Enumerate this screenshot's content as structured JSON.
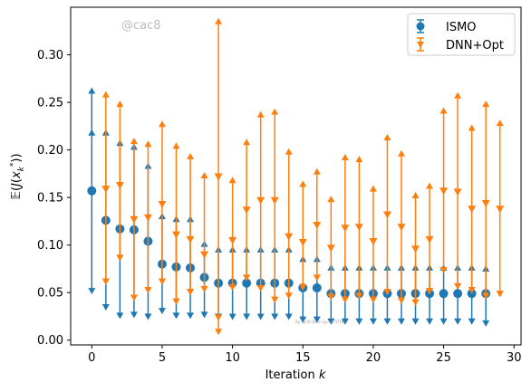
{
  "chart_data": {
    "type": "scatter",
    "title": "",
    "xlabel": "Iteration k",
    "ylabel": "𝔼(J(x_k^*))",
    "xlim": [
      -1.5,
      30.5
    ],
    "ylim": [
      -0.005,
      0.35
    ],
    "xticks": [
      0,
      5,
      10,
      15,
      20,
      25,
      30
    ],
    "yticks": [
      0.0,
      0.05,
      0.1,
      0.15,
      0.2,
      0.25,
      0.3
    ],
    "grid": false,
    "legend_position": "top-right",
    "watermark": "@cac8",
    "footnote": "By Kyrill Olsen Lyu @ DTHU ...",
    "series": [
      {
        "name": "ISMO",
        "color": "#1f77b4",
        "marker": "circle",
        "x": [
          0,
          1,
          2,
          3,
          4,
          5,
          6,
          7,
          8,
          9,
          10,
          11,
          12,
          13,
          14,
          15,
          16,
          17,
          18,
          19,
          20,
          21,
          22,
          23,
          24,
          25,
          26,
          27,
          28
        ],
        "y": [
          0.157,
          0.126,
          0.117,
          0.116,
          0.104,
          0.08,
          0.077,
          0.076,
          0.066,
          0.06,
          0.06,
          0.06,
          0.06,
          0.06,
          0.06,
          0.055,
          0.055,
          0.049,
          0.049,
          0.049,
          0.049,
          0.049,
          0.049,
          0.049,
          0.049,
          0.049,
          0.049,
          0.049,
          0.049
        ],
        "mid": [
          0.218,
          0.218,
          0.207,
          0.203,
          0.183,
          0.13,
          0.127,
          0.127,
          0.101,
          0.095,
          0.095,
          0.095,
          0.095,
          0.095,
          0.095,
          0.085,
          0.085,
          0.076,
          0.076,
          0.076,
          0.076,
          0.076,
          0.076,
          0.076,
          0.076,
          0.076,
          0.076,
          0.076,
          0.075
        ],
        "upper": [
          0.262,
          0.218,
          0.207,
          0.203,
          0.183,
          0.13,
          0.127,
          0.127,
          0.101,
          0.095,
          0.095,
          0.095,
          0.095,
          0.095,
          0.095,
          0.085,
          0.085,
          0.076,
          0.076,
          0.076,
          0.076,
          0.076,
          0.076,
          0.076,
          0.076,
          0.076,
          0.076,
          0.076,
          0.075
        ],
        "lower": [
          0.052,
          0.035,
          0.026,
          0.027,
          0.025,
          0.031,
          0.026,
          0.026,
          0.027,
          0.025,
          0.025,
          0.025,
          0.025,
          0.025,
          0.025,
          0.022,
          0.022,
          0.02,
          0.02,
          0.02,
          0.02,
          0.02,
          0.02,
          0.02,
          0.02,
          0.02,
          0.02,
          0.02,
          0.018
        ]
      },
      {
        "name": "DNN+Opt",
        "color": "#ff7f0e",
        "marker": "triangle-down",
        "x": [
          1,
          2,
          3,
          4,
          5,
          6,
          7,
          8,
          9,
          10,
          11,
          12,
          13,
          14,
          15,
          16,
          17,
          18,
          19,
          20,
          21,
          22,
          23,
          24,
          25,
          26,
          27,
          28,
          29
        ],
        "y": [
          0.159,
          0.163,
          0.127,
          0.129,
          0.143,
          0.111,
          0.106,
          0.09,
          0.172,
          0.105,
          0.137,
          0.147,
          0.147,
          0.109,
          0.103,
          0.121,
          0.097,
          0.118,
          0.119,
          0.104,
          0.132,
          0.119,
          0.096,
          0.106,
          0.157,
          0.156,
          0.138,
          0.144,
          0.138
        ],
        "upper": [
          0.258,
          0.248,
          0.209,
          0.206,
          0.227,
          0.204,
          0.193,
          0.173,
          0.335,
          0.168,
          0.208,
          0.237,
          0.24,
          0.198,
          0.164,
          0.177,
          0.148,
          0.192,
          0.19,
          0.159,
          0.213,
          0.196,
          0.152,
          0.162,
          0.241,
          0.257,
          0.223,
          0.248,
          0.228
        ],
        "mid": [
          0.062,
          0.087,
          0.045,
          0.053,
          0.062,
          0.041,
          0.051,
          0.054,
          0.024,
          0.056,
          0.066,
          0.055,
          0.043,
          0.047,
          0.056,
          0.066,
          0.046,
          0.043,
          0.047,
          0.043,
          0.051,
          0.042,
          0.04,
          0.052,
          0.074,
          0.057,
          0.053,
          0.047,
          0.049
        ],
        "lower": [
          0.062,
          0.087,
          0.045,
          0.053,
          0.062,
          0.041,
          0.051,
          0.054,
          0.009,
          0.056,
          0.066,
          0.055,
          0.043,
          0.047,
          0.056,
          0.066,
          0.046,
          0.043,
          0.047,
          0.043,
          0.051,
          0.042,
          0.04,
          0.052,
          0.074,
          0.057,
          0.053,
          0.047,
          0.049
        ]
      }
    ]
  }
}
